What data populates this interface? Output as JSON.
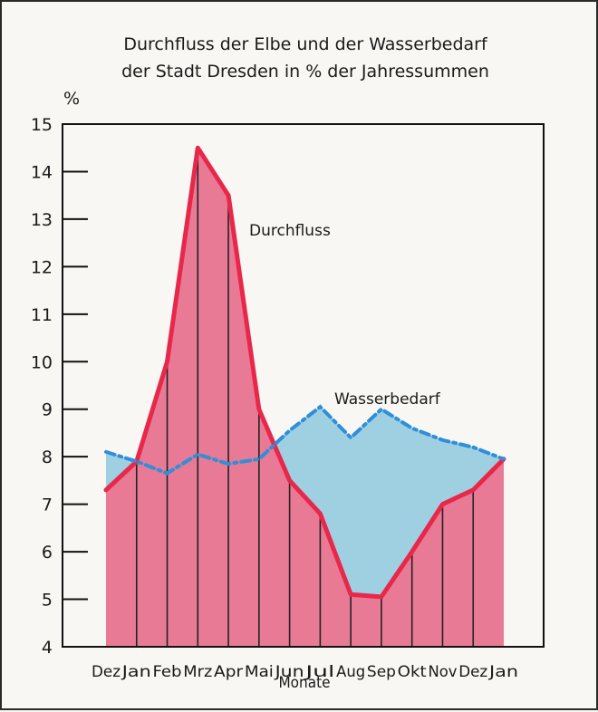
{
  "chart_data": {
    "type": "area",
    "title_lines": [
      "Durchfluss der Elbe und der Wasserbedarf",
      "der Stadt Dresden in % der Jahressummen"
    ],
    "ylabel": "%",
    "xlabel": "Monate",
    "ylim": [
      4,
      15
    ],
    "yticks": [
      4,
      5,
      6,
      7,
      8,
      9,
      10,
      11,
      12,
      13,
      14,
      15
    ],
    "categories": [
      "Dez",
      "Jan",
      "Feb",
      "Mrz",
      "Apr",
      "Mai",
      "Jun",
      "Jul",
      "Aug",
      "Sep",
      "Okt",
      "Nov",
      "Dez",
      "Jan"
    ],
    "grid": false,
    "series": [
      {
        "name": "Durchfluss",
        "values": [
          7.3,
          7.9,
          10.0,
          14.5,
          13.5,
          9.0,
          7.5,
          6.8,
          5.1,
          5.05,
          6.0,
          7.0,
          7.3,
          7.95
        ],
        "color": "#e8284a",
        "fill": "#e97a96"
      },
      {
        "name": "Wasserbedarf",
        "values": [
          8.1,
          7.9,
          7.65,
          8.05,
          7.85,
          7.95,
          8.55,
          9.05,
          8.4,
          9.0,
          8.6,
          8.35,
          8.2,
          7.95
        ],
        "color": "#2f8fd8",
        "fill": "#9fd0e2"
      }
    ]
  }
}
